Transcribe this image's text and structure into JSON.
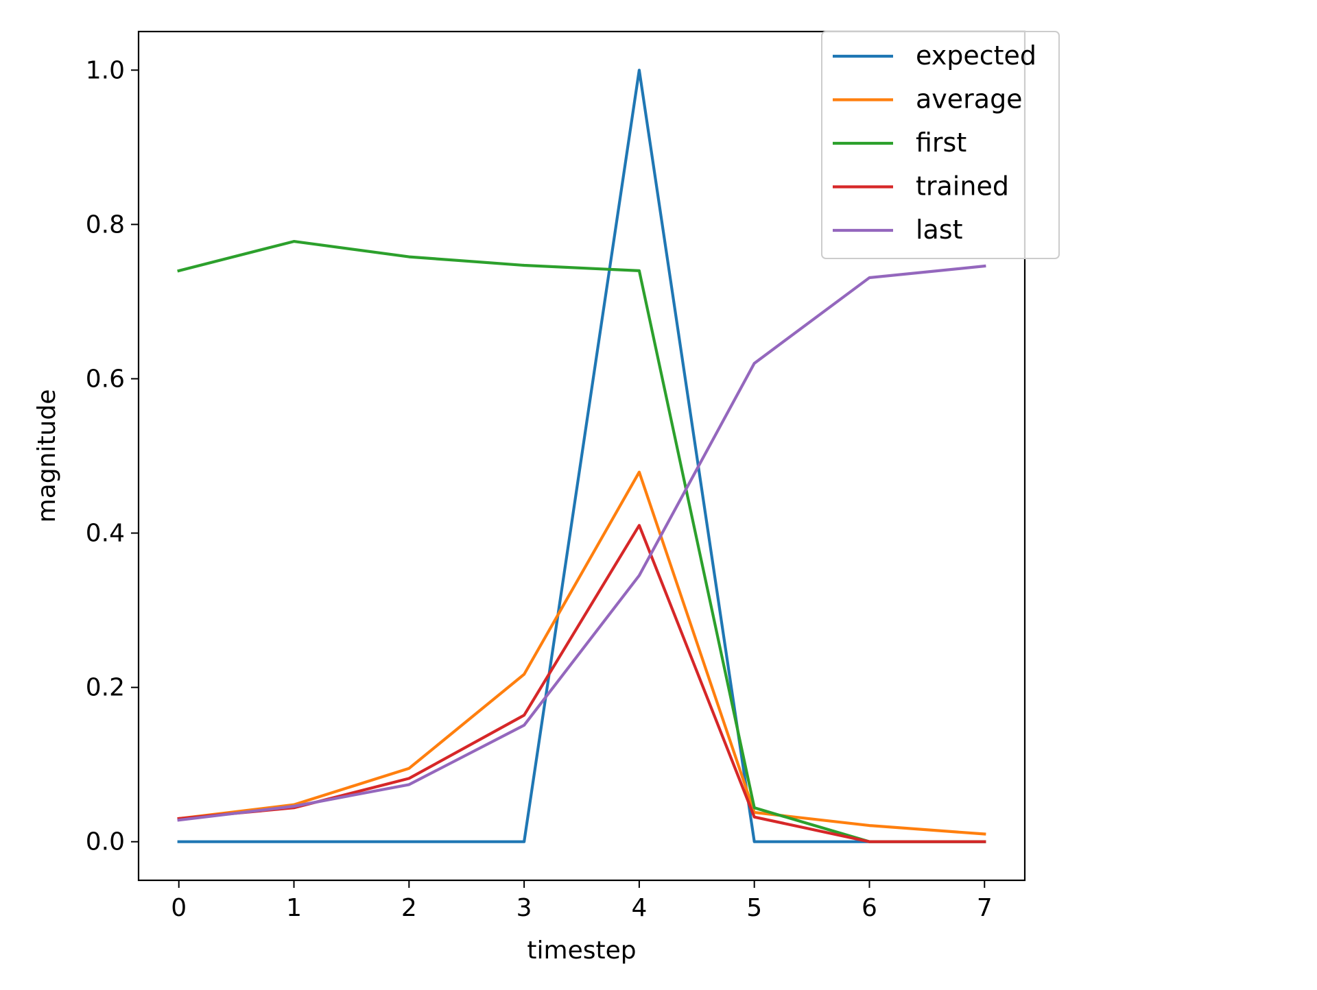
{
  "chart_data": {
    "type": "line",
    "title": "",
    "xlabel": "timestep",
    "ylabel": "magnitude",
    "x": [
      0,
      1,
      2,
      3,
      4,
      5,
      6,
      7
    ],
    "xticks": [
      "0",
      "1",
      "2",
      "3",
      "4",
      "5",
      "6",
      "7"
    ],
    "yticks": [
      "0.0",
      "0.2",
      "0.4",
      "0.6",
      "0.8",
      "1.0"
    ],
    "xlim": [
      -0.35,
      7.35
    ],
    "ylim": [
      -0.05,
      1.05
    ],
    "grid": false,
    "legend_position": "top-right",
    "series": [
      {
        "name": "expected",
        "color": "#1f77b4",
        "values": [
          0.0,
          0.0,
          0.0,
          0.0,
          1.0,
          0.0,
          0.0,
          0.0
        ]
      },
      {
        "name": "average",
        "color": "#ff7f0e",
        "values": [
          0.03,
          0.048,
          0.095,
          0.217,
          0.479,
          0.038,
          0.021,
          0.01
        ]
      },
      {
        "name": "first",
        "color": "#2ca02c",
        "values": [
          0.74,
          0.778,
          0.758,
          0.747,
          0.74,
          0.044,
          0.0,
          0.0
        ]
      },
      {
        "name": "trained",
        "color": "#d62728",
        "values": [
          0.03,
          0.044,
          0.082,
          0.164,
          0.41,
          0.032,
          0.0,
          0.0
        ]
      },
      {
        "name": "last",
        "color": "#9467bd",
        "values": [
          0.028,
          0.046,
          0.074,
          0.151,
          0.345,
          0.62,
          0.731,
          0.746
        ]
      }
    ]
  }
}
